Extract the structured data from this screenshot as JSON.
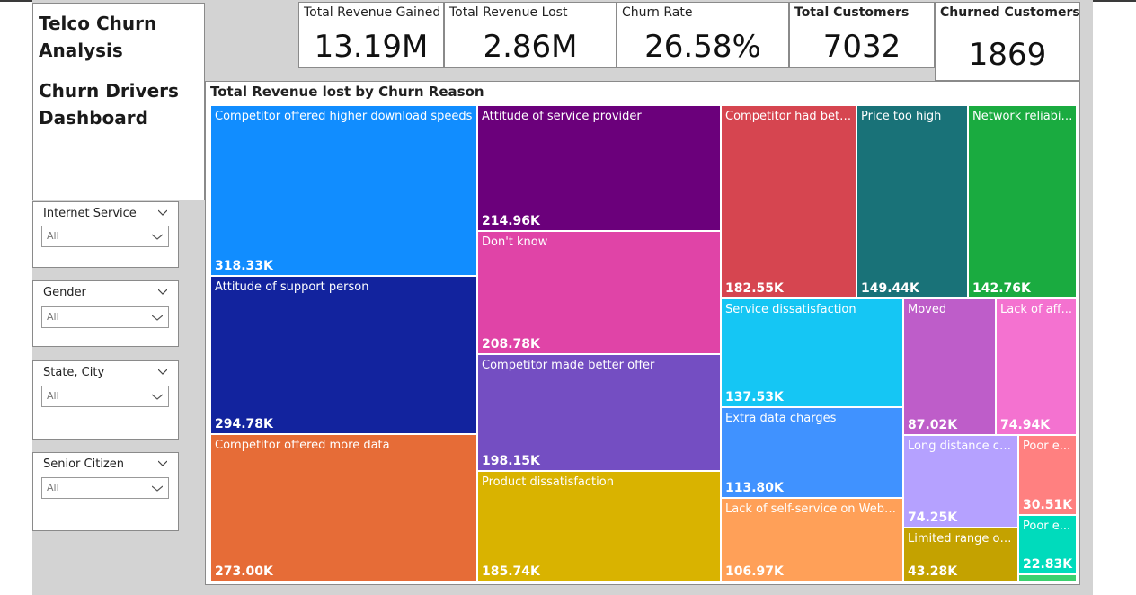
{
  "title": {
    "line1": "Telco Churn",
    "line2": "Analysis",
    "line3": "Churn Drivers",
    "line4": "Dashboard"
  },
  "kpis": [
    {
      "label": "Total Revenue Gained",
      "value": "13.19M"
    },
    {
      "label": "Total Revenue Lost",
      "value": "2.86M"
    },
    {
      "label": "Churn Rate",
      "value": "26.58%"
    },
    {
      "label": "Total Customers",
      "value": "7032"
    },
    {
      "label": "Churned Customers",
      "value": "1869"
    }
  ],
  "slicers": [
    {
      "title": "Internet Service",
      "value": "All"
    },
    {
      "title": "Gender",
      "value": "All"
    },
    {
      "title": "State, City",
      "value": "All"
    },
    {
      "title": "Senior Citizen",
      "value": "All"
    }
  ],
  "treemap": {
    "title": "Total Revenue lost by Churn Reason",
    "tiles": [
      {
        "label": "Competitor offered higher download speeds",
        "value": "318.33K",
        "color": "#118dff"
      },
      {
        "label": "Attitude of support person",
        "value": "294.78K",
        "color": "#12239e"
      },
      {
        "label": "Competitor offered more data",
        "value": "273.00K",
        "color": "#e66c37"
      },
      {
        "label": "Attitude of service provider",
        "value": "214.96K",
        "color": "#6b007b"
      },
      {
        "label": "Don't know",
        "value": "208.78K",
        "color": "#e044a7"
      },
      {
        "label": "Competitor made better offer",
        "value": "198.15K",
        "color": "#744ec2"
      },
      {
        "label": "Product dissatisfaction",
        "value": "185.74K",
        "color": "#d9b300"
      },
      {
        "label": "Competitor had bette...",
        "value": "182.55K",
        "color": "#d64550"
      },
      {
        "label": "Price too high",
        "value": "149.44K",
        "color": "#197278"
      },
      {
        "label": "Network reliability",
        "value": "142.76K",
        "color": "#1aab40"
      },
      {
        "label": "Service dissatisfaction",
        "value": "137.53K",
        "color": "#15c6f4"
      },
      {
        "label": "Extra data charges",
        "value": "113.80K",
        "color": "#4092ff"
      },
      {
        "label": "Lack of self-service on Website",
        "value": "106.97K",
        "color": "#ffa058"
      },
      {
        "label": "Moved",
        "value": "87.02K",
        "color": "#be5dc9"
      },
      {
        "label": "Lack of aff...",
        "value": "74.94K",
        "color": "#f472d0"
      },
      {
        "label": "Long distance cha...",
        "value": "74.25K",
        "color": "#b5a1ff"
      },
      {
        "label": "Limited range of s...",
        "value": "43.28K",
        "color": "#c4a200"
      },
      {
        "label": "Poor e...",
        "value": "30.51K",
        "color": "#ff8080"
      },
      {
        "label": "Poor e...",
        "value": "22.83K",
        "color": "#00dbbc"
      },
      {
        "label": "",
        "value": "",
        "color": "#3bd16f"
      }
    ]
  }
}
